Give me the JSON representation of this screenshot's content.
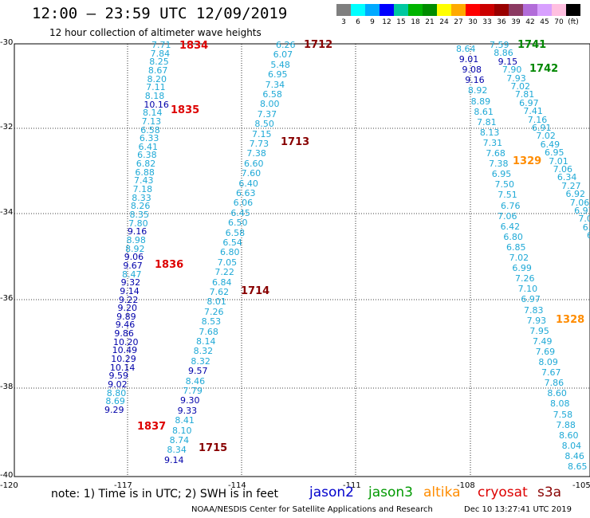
{
  "header": {
    "title": "12:00 – 23:59 UTC 12/09/2019",
    "subtitle": "12 hour collection of altimeter wave heights"
  },
  "colorbar": {
    "cells": [
      {
        "color": "#7f7f7f",
        "label": "3"
      },
      {
        "color": "#00ffff",
        "label": "6"
      },
      {
        "color": "#00aaff",
        "label": "9"
      },
      {
        "color": "#0000ff",
        "label": "12"
      },
      {
        "color": "#00c8a0",
        "label": "15"
      },
      {
        "color": "#00b400",
        "label": "18"
      },
      {
        "color": "#008c00",
        "label": "21"
      },
      {
        "color": "#ffff00",
        "label": "24"
      },
      {
        "color": "#ffaa00",
        "label": "27"
      },
      {
        "color": "#ff0000",
        "label": "30"
      },
      {
        "color": "#cc0000",
        "label": "33"
      },
      {
        "color": "#990000",
        "label": "36"
      },
      {
        "color": "#8b3a62",
        "label": "39"
      },
      {
        "color": "#b26cd9",
        "label": "42"
      },
      {
        "color": "#d8a0ff",
        "label": "45"
      },
      {
        "color": "#ffc0e0",
        "label": "70"
      },
      {
        "color": "#000000",
        "label": "(ft)"
      }
    ]
  },
  "axes": {
    "y_ticks": [
      "-30",
      "-32",
      "-34",
      "-36",
      "-38",
      "-40"
    ],
    "x_ticks": [
      "-120",
      "-117",
      "-114",
      "-111",
      "-108",
      "-105"
    ]
  },
  "swh_colors": {
    "cyan": "#1fa9d6",
    "dblue": "#0000aa"
  },
  "tracks": [
    {
      "color": "cyan",
      "values": [
        "7.71",
        "7.84",
        "8.25",
        "8.67",
        "8.20",
        "7.11",
        "8.18"
      ]
    },
    {
      "color": "dblue",
      "values": [
        "10.16"
      ]
    },
    {
      "color": "cyan",
      "values": [
        "8.14",
        "7.13",
        "6.58",
        "6.33",
        "6.41",
        "6.38",
        "6.82",
        "6.88",
        "7.43",
        "7.18",
        "8.33",
        "8.26",
        "8.35",
        "7.80"
      ]
    },
    {
      "color": "dblue",
      "values": [
        "9.16"
      ]
    },
    {
      "color": "cyan",
      "values": [
        "8.98",
        "8.92"
      ]
    },
    {
      "color": "dblue",
      "values": [
        "9.06",
        "9.67"
      ]
    },
    {
      "color": "cyan",
      "values": [
        "8.47"
      ]
    },
    {
      "color": "dblue",
      "values": [
        "9.32",
        "9.14",
        "9.22",
        "9.20",
        "9.89",
        "9.46",
        "9.86",
        "10.20",
        "10.49",
        "10.29",
        "10.14",
        "9.59",
        "9.02"
      ]
    },
    {
      "color": "cyan",
      "values": [
        "8.80",
        "8.69"
      ]
    },
    {
      "color": "dblue",
      "values": [
        "9.29"
      ]
    }
  ],
  "track2": [
    "6.26",
    "6.07",
    "5.48",
    "6.95",
    "7.34",
    "6.58",
    "8.00",
    "7.37",
    "8.50",
    "7.15",
    "7.73",
    "7.38",
    "6.60",
    "7.60",
    "6.40",
    "6.63",
    "6.06",
    "6.45",
    "6.50",
    "6.58",
    "6.54",
    "6.80",
    "7.05",
    "7.22",
    "6.84",
    "7.62",
    "8.01",
    "7.26",
    "8.53",
    "7.68",
    "8.14",
    "8.32",
    "8.32",
    "9.57",
    "8.46",
    "7.79",
    "9.30",
    "9.33",
    "8.41",
    "8.10",
    "8.74",
    "8.34",
    "9.14"
  ],
  "track2_dark_idx": [
    33,
    36,
    37,
    42
  ],
  "track3": [
    "8.64",
    "9.01",
    "9.08",
    "9.16",
    "8.92",
    "8.89",
    "8.61",
    "7.81",
    "8.13",
    "7.31",
    "7.68",
    "7.38",
    "6.95",
    "7.50",
    "7.51",
    "6.76",
    "7.06",
    "6.42",
    "6.80",
    "6.85",
    "7.02",
    "6.99",
    "7.26",
    "7.10",
    "6.97",
    "7.83",
    "7.93",
    "7.95",
    "7.49",
    "7.69",
    "8.09",
    "7.67",
    "7.86",
    "8.60",
    "8.08",
    "7.58",
    "7.88",
    "8.60",
    "8.04",
    "8.46",
    "8.65"
  ],
  "track3_dark_idx": [
    1,
    2,
    3
  ],
  "track4": [
    "7.59",
    "8.86",
    "9.15",
    "7.90",
    "7.93",
    "7.02",
    "7.81",
    "6.97",
    "7.41",
    "7.16",
    "6.91",
    "7.02",
    "6.49",
    "6.95",
    "7.01",
    "7.06",
    "6.34",
    "7.27",
    "6.92",
    "7.06",
    "6.97",
    "7.0",
    "6.",
    "6"
  ],
  "track4_dark_idx": [
    2
  ],
  "pass_times": [
    {
      "text": "1834",
      "color": "#dd0000"
    },
    {
      "text": "1835",
      "color": "#dd0000"
    },
    {
      "text": "1836",
      "color": "#dd0000"
    },
    {
      "text": "1837",
      "color": "#dd0000"
    },
    {
      "text": "1712",
      "color": "#880000"
    },
    {
      "text": "1713",
      "color": "#880000"
    },
    {
      "text": "1714",
      "color": "#880000"
    },
    {
      "text": "1715",
      "color": "#880000"
    },
    {
      "text": "1741",
      "color": "#008800"
    },
    {
      "text": "1742",
      "color": "#008800"
    },
    {
      "text": "1329",
      "color": "#ff8c00"
    },
    {
      "text": "1328",
      "color": "#ff8c00"
    }
  ],
  "note": "note:  1) Time is in UTC;  2) SWH is in feet",
  "legend": [
    {
      "name": "jason2",
      "color": "#0000cc"
    },
    {
      "name": "jason3",
      "color": "#009900"
    },
    {
      "name": "altika",
      "color": "#ff8c00"
    },
    {
      "name": "cryosat",
      "color": "#dd0000"
    },
    {
      "name": "s3a",
      "color": "#880000"
    }
  ],
  "footer": {
    "left": "NOAA/NESDIS Center for Satellite Applications and Research",
    "right": "Dec 10 13:27:41 UTC 2019"
  }
}
